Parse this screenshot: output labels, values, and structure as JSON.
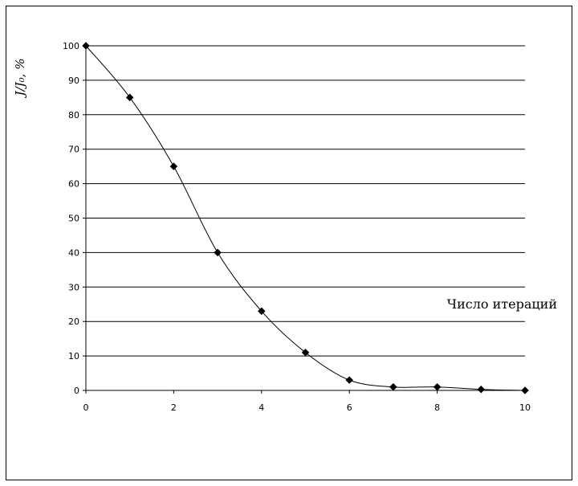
{
  "chart_data": {
    "type": "line",
    "title": "",
    "xlabel": "Число итераций",
    "ylabel": "J/J₀, %",
    "xlim": [
      0,
      10
    ],
    "ylim": [
      0,
      100
    ],
    "x_ticks": [
      "0",
      "2",
      "4",
      "6",
      "8",
      "10"
    ],
    "y_ticks": [
      "0",
      "10",
      "20",
      "30",
      "40",
      "50",
      "60",
      "70",
      "80",
      "90",
      "100"
    ],
    "grid": "horizontal",
    "legend": "none",
    "smooth": true,
    "marker": "diamond",
    "colors": {
      "line": "#000000",
      "marker": "#000000",
      "grid": "#000000",
      "frame": "#000000"
    },
    "series": [
      {
        "x": [
          0,
          1,
          2,
          3,
          4,
          5,
          6,
          7,
          8,
          9,
          10
        ],
        "y": [
          100,
          85,
          65,
          40,
          23,
          11,
          3,
          1,
          1,
          0.3,
          0
        ]
      }
    ]
  }
}
